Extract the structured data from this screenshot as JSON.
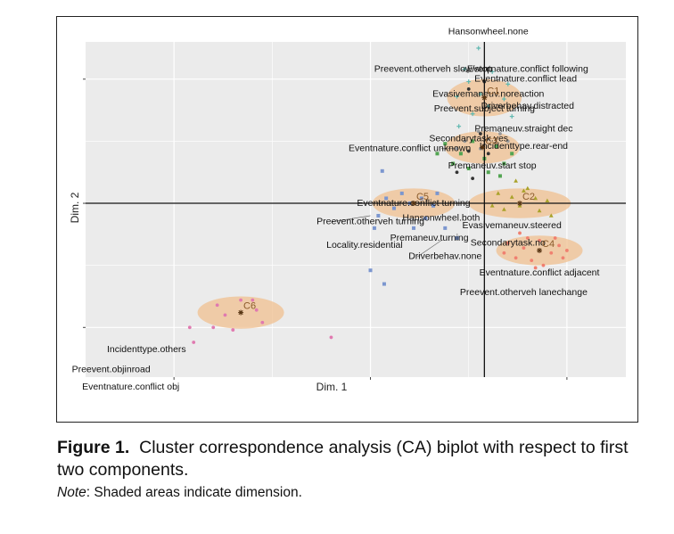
{
  "chart_data": {
    "type": "scatter",
    "xlabel": "Dim. 1",
    "ylabel": "Dim. 2",
    "xlim": [
      -1.45,
      1.3
    ],
    "ylim": [
      -1.4,
      1.3
    ],
    "grid": true,
    "xticks": [
      -1,
      0,
      1
    ],
    "yticks": [
      -1,
      0,
      1
    ],
    "reference_lines": {
      "x": 0.58,
      "y": 0
    },
    "clusters": [
      {
        "name": "C1",
        "x": 0.58,
        "y": 0.85,
        "rx": 0.19,
        "ry": 0.15
      },
      {
        "name": "C2",
        "x": 0.76,
        "y": 0.0,
        "rx": 0.26,
        "ry": 0.12
      },
      {
        "name": "C3",
        "x": 0.57,
        "y": 0.45,
        "rx": 0.19,
        "ry": 0.13
      },
      {
        "name": "C4",
        "x": 0.86,
        "y": -0.38,
        "rx": 0.22,
        "ry": 0.12
      },
      {
        "name": "C5",
        "x": 0.22,
        "y": 0.0,
        "rx": 0.21,
        "ry": 0.12
      },
      {
        "name": "C6",
        "x": -0.66,
        "y": -0.88,
        "rx": 0.22,
        "ry": 0.13
      }
    ],
    "category_labels": [
      {
        "text": "Hansonwheel.none",
        "x": 0.6,
        "y": 1.38
      },
      {
        "text": "Eventnature.conflict following",
        "x": 0.8,
        "y": 1.08
      },
      {
        "text": "Preevent.otherveh slow/stop",
        "x": 0.32,
        "y": 1.08
      },
      {
        "text": "Eventnature.conflict lead",
        "x": 0.79,
        "y": 1.0
      },
      {
        "text": "Evasivemaneuv.noreaction",
        "x": 0.6,
        "y": 0.88
      },
      {
        "text": "Preevent.subject turning",
        "x": 0.58,
        "y": 0.76
      },
      {
        "text": "Driverbehav.distracted",
        "x": 0.8,
        "y": 0.78
      },
      {
        "text": "Premaneuv.straight dec",
        "x": 0.78,
        "y": 0.6
      },
      {
        "text": "Secondarytask.yes",
        "x": 0.5,
        "y": 0.52
      },
      {
        "text": "Eventnature.conflict unknown",
        "x": 0.2,
        "y": 0.44
      },
      {
        "text": "Incidenttype.rear-end",
        "x": 0.78,
        "y": 0.46
      },
      {
        "text": "Premaneuv.start stop",
        "x": 0.62,
        "y": 0.3
      },
      {
        "text": "Eventnature.conflict turning",
        "x": 0.22,
        "y": 0.0
      },
      {
        "text": "Hansonwheel.both",
        "x": 0.36,
        "y": -0.12
      },
      {
        "text": "Preevent.otherveh turning",
        "x": 0.0,
        "y": -0.15
      },
      {
        "text": "Evasivemaneuv.steered",
        "x": 0.72,
        "y": -0.18
      },
      {
        "text": "Premaneuv.turning",
        "x": 0.3,
        "y": -0.28
      },
      {
        "text": "Locality.residential",
        "x": -0.03,
        "y": -0.34
      },
      {
        "text": "Secondarytask.no",
        "x": 0.7,
        "y": -0.32
      },
      {
        "text": "Driverbehav.none",
        "x": 0.38,
        "y": -0.43
      },
      {
        "text": "Eventnature.conflict adjacent",
        "x": 0.86,
        "y": -0.56
      },
      {
        "text": "Preevent.otherveh lanechange",
        "x": 0.78,
        "y": -0.72
      },
      {
        "text": "Incidenttype.others",
        "x": -1.14,
        "y": -1.18
      },
      {
        "text": "Preevent.objinroad",
        "x": -1.32,
        "y": -1.34
      },
      {
        "text": "Eventnature.conflict obj",
        "x": -1.22,
        "y": -1.48
      }
    ],
    "point_groups": [
      {
        "color": "#5fb8b0",
        "shape": "plus",
        "points": [
          [
            0.55,
            1.25
          ],
          [
            0.48,
            1.08
          ],
          [
            0.62,
            1.06
          ],
          [
            0.5,
            0.98
          ],
          [
            0.7,
            0.96
          ],
          [
            0.56,
            0.88
          ],
          [
            0.44,
            0.86
          ],
          [
            0.6,
            0.78
          ],
          [
            0.68,
            0.84
          ],
          [
            0.52,
            0.72
          ],
          [
            0.45,
            0.62
          ],
          [
            0.72,
            0.7
          ]
        ]
      },
      {
        "color": "#53a553",
        "shape": "square",
        "points": [
          [
            0.38,
            0.48
          ],
          [
            0.46,
            0.4
          ],
          [
            0.52,
            0.5
          ],
          [
            0.58,
            0.36
          ],
          [
            0.64,
            0.46
          ],
          [
            0.68,
            0.32
          ],
          [
            0.42,
            0.32
          ],
          [
            0.6,
            0.25
          ],
          [
            0.72,
            0.4
          ],
          [
            0.5,
            0.28
          ],
          [
            0.34,
            0.4
          ],
          [
            0.66,
            0.22
          ]
        ]
      },
      {
        "color": "#9a9a9a",
        "shape": "circle",
        "points": [
          [
            0.55,
            0.58
          ],
          [
            0.66,
            0.56
          ],
          [
            0.48,
            0.5
          ],
          [
            0.7,
            0.5
          ],
          [
            0.56,
            0.44
          ],
          [
            0.6,
            0.52
          ],
          [
            0.44,
            0.44
          ]
        ]
      },
      {
        "color": "#a9a22a",
        "shape": "triangle",
        "points": [
          [
            0.65,
            0.08
          ],
          [
            0.72,
            0.05
          ],
          [
            0.78,
            0.1
          ],
          [
            0.84,
            0.04
          ],
          [
            0.76,
            -0.02
          ],
          [
            0.68,
            -0.05
          ],
          [
            0.86,
            -0.06
          ],
          [
            0.9,
            0.02
          ],
          [
            0.74,
            0.18
          ],
          [
            0.8,
            0.12
          ],
          [
            0.62,
            -0.02
          ],
          [
            0.92,
            -0.1
          ]
        ]
      },
      {
        "color": "#f08070",
        "shape": "circle",
        "points": [
          [
            0.7,
            -0.32
          ],
          [
            0.78,
            -0.36
          ],
          [
            0.86,
            -0.3
          ],
          [
            0.92,
            -0.4
          ],
          [
            0.96,
            -0.34
          ],
          [
            0.74,
            -0.44
          ],
          [
            0.82,
            -0.46
          ],
          [
            0.88,
            -0.5
          ],
          [
            0.98,
            -0.44
          ],
          [
            0.68,
            -0.4
          ],
          [
            0.8,
            -0.28
          ],
          [
            0.94,
            -0.28
          ],
          [
            1.0,
            -0.38
          ],
          [
            0.76,
            -0.24
          ],
          [
            0.84,
            -0.52
          ]
        ]
      },
      {
        "color": "#7b96cf",
        "shape": "square",
        "points": [
          [
            0.2,
            0.0
          ],
          [
            0.26,
            0.04
          ],
          [
            0.12,
            -0.04
          ],
          [
            0.32,
            -0.02
          ],
          [
            0.28,
            -0.12
          ],
          [
            0.16,
            0.08
          ],
          [
            0.04,
            -0.1
          ],
          [
            0.34,
            0.08
          ],
          [
            0.08,
            0.04
          ],
          [
            0.02,
            -0.2
          ],
          [
            0.07,
            -0.65
          ],
          [
            0.06,
            0.26
          ],
          [
            0.0,
            -0.54
          ],
          [
            0.44,
            -0.28
          ],
          [
            0.38,
            -0.2
          ],
          [
            0.22,
            -0.2
          ]
        ]
      },
      {
        "color": "#e07ab0",
        "shape": "circle",
        "points": [
          [
            -0.58,
            -0.86
          ],
          [
            -0.74,
            -0.9
          ],
          [
            -0.66,
            -0.78
          ],
          [
            -0.8,
            -1.0
          ],
          [
            -0.55,
            -0.96
          ],
          [
            -0.7,
            -1.02
          ],
          [
            -0.9,
            -1.12
          ],
          [
            -0.92,
            -1.0
          ],
          [
            -0.2,
            -1.08
          ],
          [
            -0.6,
            -0.78
          ],
          [
            -0.78,
            -0.82
          ]
        ]
      },
      {
        "color": "#333333",
        "shape": "circle",
        "points": [
          [
            0.5,
            0.92
          ],
          [
            0.58,
            0.98
          ],
          [
            0.5,
            0.42
          ],
          [
            0.6,
            0.4
          ],
          [
            0.44,
            0.25
          ],
          [
            0.52,
            0.2
          ],
          [
            0.56,
            0.56
          ]
        ]
      }
    ]
  },
  "caption": {
    "figure_label": "Figure 1.",
    "figure_text": "Cluster correspondence analysis (CA) biplot with respect to first two components.",
    "note_label": "Note",
    "note_text": ": Shaded areas indicate dimension."
  },
  "colors": {
    "panel_bg": "#ebebeb",
    "grid": "#ffffff",
    "cluster_fill": "#f0c090",
    "cluster_text": "#8a5a2a"
  }
}
